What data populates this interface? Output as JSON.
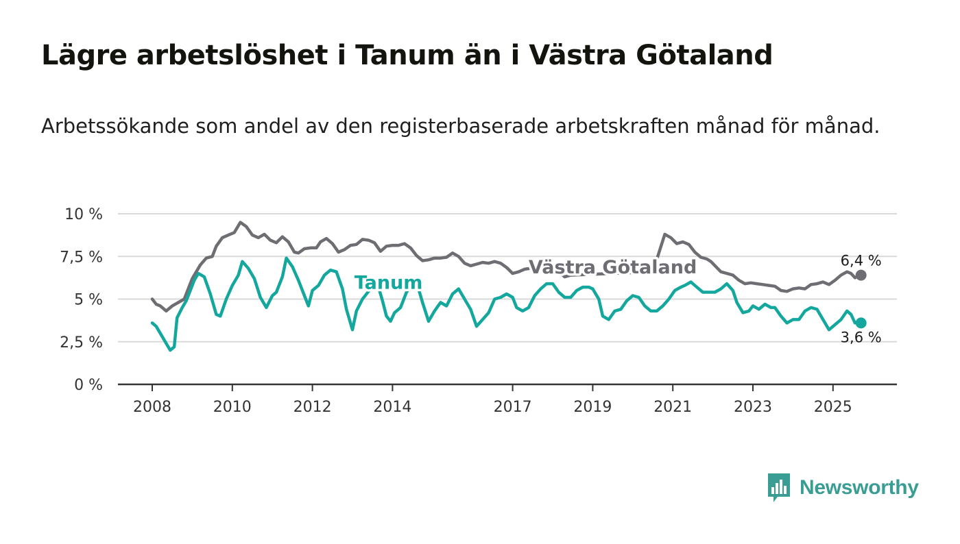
{
  "header": {
    "title": "Lägre arbetslöshet i Tanum än i Västra Götaland",
    "subtitle": "Arbetssökande som andel av den registerbaserade arbetskraften månad för månad."
  },
  "logo": {
    "name": "Newsworthy",
    "icon": "newsworthy-bar-chart-icon"
  },
  "colors": {
    "vg": "#6e6d73",
    "tanum": "#13a79e",
    "grid": "#d9d9d9",
    "axis": "#333333"
  },
  "chart_data": {
    "type": "line",
    "title": "Lägre arbetslöshet i Tanum än i Västra Götaland",
    "xlabel": "",
    "ylabel": "",
    "x_range": [
      2008,
      2025.7
    ],
    "ylim": [
      0,
      10
    ],
    "y_ticks": [
      0,
      2.5,
      5,
      7.5,
      10
    ],
    "y_tick_labels": [
      "0 %",
      "2,5 %",
      "5 %",
      "7,5 %",
      "10 %"
    ],
    "x_ticks": [
      2008,
      2010,
      2012,
      2014,
      2017,
      2019,
      2021,
      2023,
      2025
    ],
    "x_tick_labels": [
      "2008",
      "2010",
      "2012",
      "2014",
      "2017",
      "2019",
      "2021",
      "2023",
      "2025"
    ],
    "grid": true,
    "series": [
      {
        "name": "Västra Götaland",
        "color": "#6e6d73",
        "end_label": "6,4 %",
        "points": [
          [
            2008.0,
            5.0
          ],
          [
            2008.1,
            4.7
          ],
          [
            2008.2,
            4.6
          ],
          [
            2008.35,
            4.3
          ],
          [
            2008.5,
            4.6
          ],
          [
            2008.65,
            4.8
          ],
          [
            2008.8,
            5.0
          ],
          [
            2009.0,
            6.2
          ],
          [
            2009.2,
            7.0
          ],
          [
            2009.35,
            7.4
          ],
          [
            2009.5,
            7.5
          ],
          [
            2009.6,
            8.1
          ],
          [
            2009.75,
            8.6
          ],
          [
            2009.9,
            8.75
          ],
          [
            2010.05,
            8.9
          ],
          [
            2010.2,
            9.5
          ],
          [
            2010.35,
            9.25
          ],
          [
            2010.5,
            8.75
          ],
          [
            2010.65,
            8.6
          ],
          [
            2010.8,
            8.8
          ],
          [
            2010.95,
            8.45
          ],
          [
            2011.1,
            8.3
          ],
          [
            2011.25,
            8.65
          ],
          [
            2011.4,
            8.35
          ],
          [
            2011.55,
            7.75
          ],
          [
            2011.65,
            7.7
          ],
          [
            2011.8,
            7.95
          ],
          [
            2011.95,
            8.0
          ],
          [
            2012.1,
            8.0
          ],
          [
            2012.2,
            8.35
          ],
          [
            2012.35,
            8.55
          ],
          [
            2012.5,
            8.25
          ],
          [
            2012.65,
            7.75
          ],
          [
            2012.8,
            7.9
          ],
          [
            2012.95,
            8.15
          ],
          [
            2013.1,
            8.2
          ],
          [
            2013.25,
            8.5
          ],
          [
            2013.4,
            8.45
          ],
          [
            2013.55,
            8.3
          ],
          [
            2013.7,
            7.8
          ],
          [
            2013.85,
            8.1
          ],
          [
            2014.0,
            8.15
          ],
          [
            2014.15,
            8.15
          ],
          [
            2014.3,
            8.25
          ],
          [
            2014.45,
            8.0
          ],
          [
            2014.6,
            7.55
          ],
          [
            2014.75,
            7.25
          ],
          [
            2014.9,
            7.3
          ],
          [
            2015.05,
            7.4
          ],
          [
            2015.2,
            7.4
          ],
          [
            2015.35,
            7.45
          ],
          [
            2015.5,
            7.7
          ],
          [
            2015.65,
            7.5
          ],
          [
            2015.8,
            7.1
          ],
          [
            2015.95,
            6.95
          ],
          [
            2016.1,
            7.05
          ],
          [
            2016.25,
            7.15
          ],
          [
            2016.4,
            7.1
          ],
          [
            2016.55,
            7.2
          ],
          [
            2016.7,
            7.1
          ],
          [
            2016.85,
            6.85
          ],
          [
            2017.0,
            6.5
          ],
          [
            2017.15,
            6.6
          ],
          [
            2017.3,
            6.75
          ],
          [
            2017.45,
            6.8
          ],
          [
            2017.6,
            6.85
          ],
          [
            2017.75,
            6.9
          ],
          [
            2017.9,
            6.85
          ],
          [
            2018.05,
            6.65
          ],
          [
            2018.2,
            6.5
          ],
          [
            2018.3,
            6.3
          ],
          [
            2018.45,
            6.4
          ],
          [
            2020.5,
            6.6
          ],
          [
            2020.65,
            7.7
          ],
          [
            2020.8,
            8.8
          ],
          [
            2020.95,
            8.6
          ],
          [
            2021.1,
            8.25
          ],
          [
            2021.25,
            8.35
          ],
          [
            2021.4,
            8.2
          ],
          [
            2021.55,
            7.75
          ],
          [
            2021.7,
            7.45
          ],
          [
            2021.85,
            7.35
          ],
          [
            2021.95,
            7.2
          ],
          [
            2022.2,
            6.6
          ],
          [
            2022.35,
            6.5
          ],
          [
            2022.5,
            6.4
          ],
          [
            2022.65,
            6.1
          ],
          [
            2022.8,
            5.9
          ],
          [
            2022.95,
            5.95
          ],
          [
            2023.1,
            5.9
          ],
          [
            2023.25,
            5.85
          ],
          [
            2023.4,
            5.8
          ],
          [
            2023.55,
            5.75
          ],
          [
            2023.7,
            5.5
          ],
          [
            2023.85,
            5.45
          ],
          [
            2024.0,
            5.6
          ],
          [
            2024.15,
            5.65
          ],
          [
            2024.3,
            5.6
          ],
          [
            2024.45,
            5.85
          ],
          [
            2024.6,
            5.9
          ],
          [
            2024.75,
            6.0
          ],
          [
            2024.9,
            5.85
          ],
          [
            2025.05,
            6.1
          ],
          [
            2025.2,
            6.4
          ],
          [
            2025.35,
            6.6
          ],
          [
            2025.45,
            6.5
          ],
          [
            2025.55,
            6.25
          ],
          [
            2025.65,
            6.4
          ],
          [
            2025.7,
            6.4
          ]
        ]
      },
      {
        "name": "Tanum",
        "color": "#13a79e",
        "end_label": "3,6 %",
        "points": [
          [
            2008.0,
            3.6
          ],
          [
            2008.1,
            3.4
          ],
          [
            2008.25,
            2.8
          ],
          [
            2008.35,
            2.4
          ],
          [
            2008.45,
            2.0
          ],
          [
            2008.55,
            2.2
          ],
          [
            2008.62,
            3.9
          ],
          [
            2008.75,
            4.5
          ],
          [
            2008.85,
            4.9
          ],
          [
            2008.95,
            5.5
          ],
          [
            2009.05,
            6.1
          ],
          [
            2009.15,
            6.5
          ],
          [
            2009.3,
            6.3
          ],
          [
            2009.45,
            5.3
          ],
          [
            2009.6,
            4.1
          ],
          [
            2009.7,
            4.0
          ],
          [
            2009.85,
            5.0
          ],
          [
            2010.0,
            5.8
          ],
          [
            2010.15,
            6.4
          ],
          [
            2010.25,
            7.2
          ],
          [
            2010.4,
            6.8
          ],
          [
            2010.55,
            6.2
          ],
          [
            2010.7,
            5.1
          ],
          [
            2010.85,
            4.5
          ],
          [
            2011.0,
            5.2
          ],
          [
            2011.1,
            5.4
          ],
          [
            2011.25,
            6.3
          ],
          [
            2011.35,
            7.4
          ],
          [
            2011.5,
            6.9
          ],
          [
            2011.65,
            6.1
          ],
          [
            2011.75,
            5.5
          ],
          [
            2011.9,
            4.6
          ],
          [
            2012.0,
            5.5
          ],
          [
            2012.15,
            5.8
          ],
          [
            2012.3,
            6.4
          ],
          [
            2012.45,
            6.7
          ],
          [
            2012.6,
            6.6
          ],
          [
            2012.75,
            5.6
          ],
          [
            2012.85,
            4.4
          ],
          [
            2013.0,
            3.2
          ],
          [
            2013.1,
            4.3
          ],
          [
            2013.25,
            5.0
          ],
          [
            2013.45,
            5.6
          ],
          [
            2013.55,
            5.9
          ],
          [
            2013.65,
            5.7
          ],
          [
            2013.75,
            4.9
          ],
          [
            2013.85,
            4.0
          ],
          [
            2013.95,
            3.7
          ],
          [
            2014.05,
            4.2
          ],
          [
            2014.2,
            4.5
          ],
          [
            2014.35,
            5.4
          ],
          [
            2014.5,
            5.9
          ],
          [
            2014.65,
            5.6
          ],
          [
            2014.75,
            4.8
          ],
          [
            2014.9,
            3.7
          ],
          [
            2015.05,
            4.3
          ],
          [
            2015.2,
            4.8
          ],
          [
            2015.35,
            4.6
          ],
          [
            2015.5,
            5.3
          ],
          [
            2015.65,
            5.6
          ],
          [
            2015.8,
            5.0
          ],
          [
            2015.95,
            4.4
          ],
          [
            2016.1,
            3.4
          ],
          [
            2016.25,
            3.8
          ],
          [
            2016.4,
            4.2
          ],
          [
            2016.55,
            5.0
          ],
          [
            2016.7,
            5.1
          ],
          [
            2016.85,
            5.3
          ],
          [
            2017.0,
            5.1
          ],
          [
            2017.1,
            4.5
          ],
          [
            2017.25,
            4.3
          ],
          [
            2017.4,
            4.5
          ],
          [
            2017.55,
            5.2
          ],
          [
            2017.7,
            5.6
          ],
          [
            2017.85,
            5.9
          ],
          [
            2018.0,
            5.9
          ],
          [
            2018.15,
            5.4
          ],
          [
            2018.3,
            5.1
          ],
          [
            2018.45,
            5.1
          ],
          [
            2018.6,
            5.5
          ],
          [
            2018.75,
            5.7
          ],
          [
            2018.9,
            5.7
          ],
          [
            2019.0,
            5.6
          ],
          [
            2019.15,
            5.0
          ],
          [
            2019.25,
            4.0
          ],
          [
            2019.4,
            3.8
          ],
          [
            2019.55,
            4.3
          ],
          [
            2019.7,
            4.4
          ],
          [
            2019.85,
            4.9
          ],
          [
            2020.0,
            5.2
          ],
          [
            2020.15,
            5.1
          ],
          [
            2020.3,
            4.6
          ],
          [
            2020.45,
            4.3
          ],
          [
            2020.6,
            4.3
          ],
          [
            2020.75,
            4.6
          ],
          [
            2020.9,
            5.0
          ],
          [
            2021.05,
            5.5
          ],
          [
            2021.2,
            5.7
          ],
          [
            2021.3,
            5.8
          ],
          [
            2021.45,
            6.0
          ],
          [
            2021.6,
            5.7
          ],
          [
            2021.75,
            5.4
          ],
          [
            2021.9,
            5.4
          ],
          [
            2022.05,
            5.4
          ],
          [
            2022.2,
            5.6
          ],
          [
            2022.35,
            5.9
          ],
          [
            2022.5,
            5.5
          ],
          [
            2022.6,
            4.8
          ],
          [
            2022.75,
            4.2
          ],
          [
            2022.9,
            4.3
          ],
          [
            2023.0,
            4.6
          ],
          [
            2023.15,
            4.4
          ],
          [
            2023.3,
            4.7
          ],
          [
            2023.45,
            4.5
          ],
          [
            2023.55,
            4.5
          ],
          [
            2023.7,
            4.0
          ],
          [
            2023.85,
            3.6
          ],
          [
            2024.0,
            3.8
          ],
          [
            2024.15,
            3.8
          ],
          [
            2024.3,
            4.3
          ],
          [
            2024.45,
            4.5
          ],
          [
            2024.6,
            4.4
          ],
          [
            2024.75,
            3.8
          ],
          [
            2024.9,
            3.2
          ],
          [
            2025.05,
            3.5
          ],
          [
            2025.2,
            3.8
          ],
          [
            2025.35,
            4.3
          ],
          [
            2025.45,
            4.1
          ],
          [
            2025.55,
            3.6
          ],
          [
            2025.65,
            3.6
          ],
          [
            2025.7,
            3.6
          ]
        ]
      }
    ],
    "annotations": [
      {
        "text": "Tanum",
        "series": "Tanum",
        "at": [
          2013.9,
          5.6
        ]
      },
      {
        "text": "Västra Götaland",
        "series": "Västra Götaland",
        "at": [
          2019.5,
          6.5
        ]
      }
    ]
  }
}
